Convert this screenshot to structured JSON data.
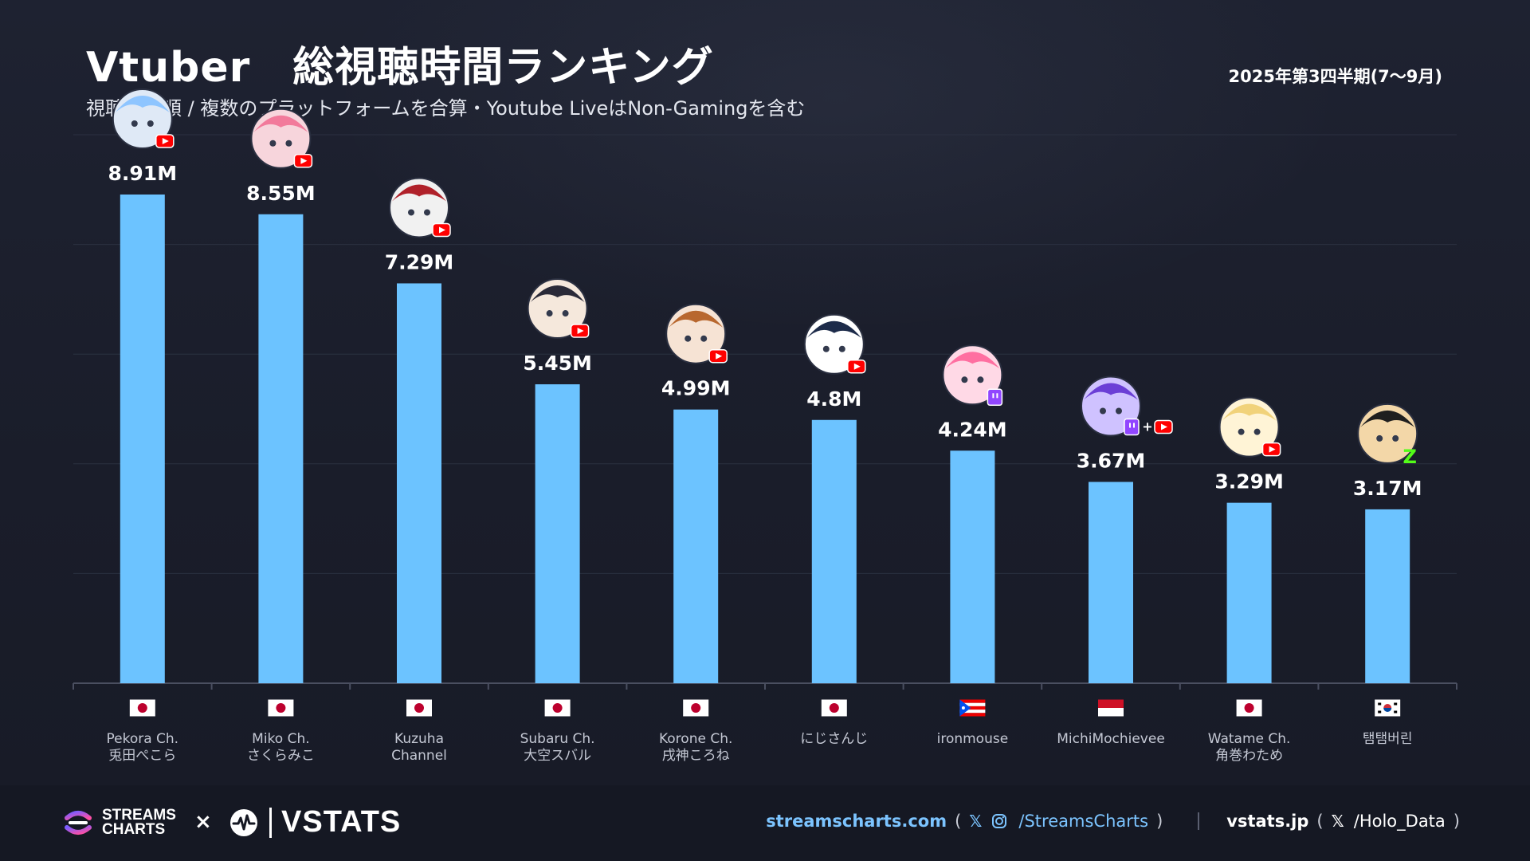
{
  "header": {
    "title": "Vtuber　総視聴時間ランキング",
    "subtitle": "視聴時間順 / 複数のプラットフォームを合算・Youtube LiveはNon-Gamingを含む",
    "period": "2025年第3四半期(7〜9月)"
  },
  "colors": {
    "background": "#1b1f2c",
    "bar": "#6cc3ff",
    "youtube": "#ff0000",
    "twitch": "#9146ff",
    "kick": "#53fc18",
    "link": "#7cc4ff"
  },
  "chart_data": {
    "type": "bar",
    "categories": [
      "Pekora Ch.\n兎田ぺこら",
      "Miko Ch.\nさくらみこ",
      "Kuzuha\nChannel",
      "Subaru Ch.\n大空スバル",
      "Korone Ch.\n戌神ころね",
      "にじさんじ",
      "ironmouse",
      "MichiMochievee",
      "Watame Ch.\n角巻わため",
      "탬탬버린"
    ],
    "values": [
      8.91,
      8.55,
      7.29,
      5.45,
      4.99,
      4.8,
      4.24,
      3.67,
      3.29,
      3.17
    ],
    "value_labels": [
      "8.91M",
      "8.55M",
      "7.29M",
      "5.45M",
      "4.99M",
      "4.8M",
      "4.24M",
      "3.67M",
      "3.29M",
      "3.17M"
    ],
    "unit": "M",
    "flags": [
      "jp",
      "jp",
      "jp",
      "jp",
      "jp",
      "jp",
      "pr",
      "id",
      "jp",
      "kr"
    ],
    "platforms": [
      "youtube",
      "youtube",
      "youtube",
      "youtube",
      "youtube",
      "youtube",
      "twitch",
      "twitch+youtube",
      "youtube",
      "kick"
    ],
    "ylim": [
      0,
      10
    ],
    "grid": true,
    "xlabel": "",
    "ylabel": ""
  },
  "footer": {
    "streamscharts_logo": [
      "STREAMS",
      "CHARTS"
    ],
    "times": "×",
    "vstats_logo": "VSTATS",
    "streamscharts_site": "streamscharts.com",
    "streamscharts_handle": "/StreamsCharts",
    "vstats_site": "vstats.jp",
    "vstats_handle": "/Holo_Data",
    "open_paren": "(",
    "close_paren": ")",
    "x_icon": "𝕏"
  }
}
